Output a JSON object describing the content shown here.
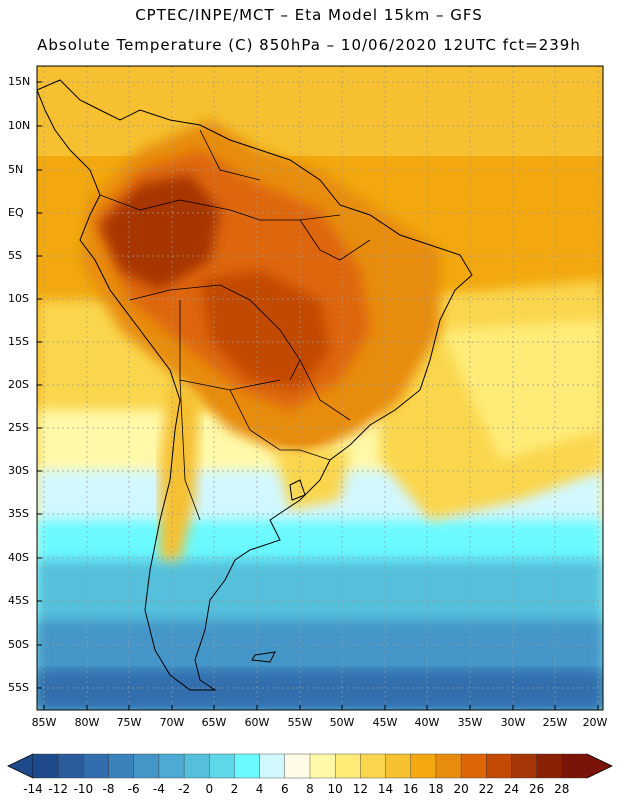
{
  "header": {
    "title_line1": "CPTEC/INPE/MCT –   Eta Model 15km – GFS",
    "title_line2": "Absolute Temperature (C) 850hPa – 10/06/2020 12UTC fct=239h"
  },
  "axes": {
    "lat_labels": [
      "15N",
      "10N",
      "5N",
      "EQ",
      "5S",
      "10S",
      "15S",
      "20S",
      "25S",
      "30S",
      "35S",
      "40S",
      "45S",
      "50S",
      "55S"
    ],
    "lon_labels": [
      "85W",
      "80W",
      "75W",
      "70W",
      "65W",
      "60W",
      "55W",
      "50W",
      "45W",
      "40W",
      "35W",
      "30W",
      "25W",
      "20W"
    ]
  },
  "colorbar": {
    "ticks": [
      "-14",
      "-12",
      "-10",
      "-8",
      "-6",
      "-4",
      "-2",
      "0",
      "2",
      "4",
      "6",
      "8",
      "10",
      "12",
      "14",
      "16",
      "18",
      "20",
      "22",
      "24",
      "26",
      "28"
    ],
    "colors": [
      "#1e4a8c",
      "#2a5c9c",
      "#326eae",
      "#3b82bc",
      "#4596c8",
      "#4eaad4",
      "#55c0dc",
      "#5ed8e8",
      "#6afaff",
      "#d2f8ff",
      "#fffbe6",
      "#fff9a8",
      "#ffec78",
      "#fad64e",
      "#f6c030",
      "#f2a80e",
      "#e88c10",
      "#de6608",
      "#c24a04",
      "#a63606",
      "#8c2006",
      "#7a1408"
    ]
  },
  "map": {
    "legend_colors": {
      "ocean_north": "#f2a80e",
      "hot_core": "#a63606",
      "warm": "#e88c10",
      "mild": "#fad64e",
      "cool": "#d2f8ff",
      "cold": "#5ed8e8",
      "coldest": "#3b82bc"
    }
  }
}
